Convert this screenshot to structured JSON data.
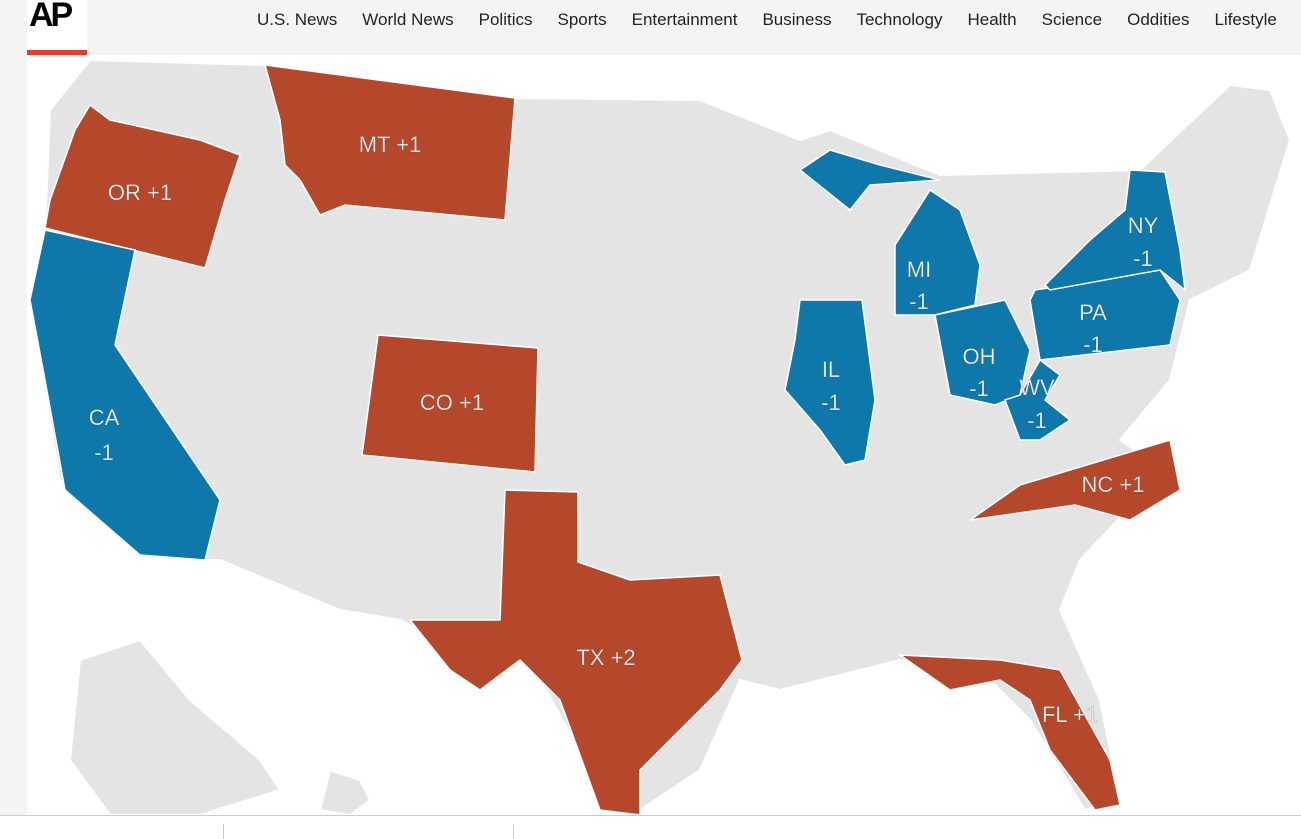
{
  "header": {
    "logo": "AP",
    "nav": [
      "U.S. News",
      "World News",
      "Politics",
      "Sports",
      "Entertainment",
      "Business",
      "Technology",
      "Health",
      "Science",
      "Oddities",
      "Lifestyle"
    ]
  },
  "colors": {
    "gain": "#b5472a",
    "loss": "#0f78ab",
    "neutral": "#e4e4e5"
  },
  "map": {
    "states": [
      {
        "id": "OR",
        "label": "OR +1",
        "change": 1
      },
      {
        "id": "MT",
        "label": "MT +1",
        "change": 1
      },
      {
        "id": "CO",
        "label": "CO +1",
        "change": 1
      },
      {
        "id": "TX",
        "label": "TX +2",
        "change": 2
      },
      {
        "id": "NC",
        "label": "NC +1",
        "change": 1
      },
      {
        "id": "FL",
        "label": "FL +1",
        "change": 1
      },
      {
        "id": "CA",
        "label": "CA",
        "change_label": "-1",
        "change": -1
      },
      {
        "id": "IL",
        "label": "IL",
        "change_label": "-1",
        "change": -1
      },
      {
        "id": "MI",
        "label": "MI",
        "change_label": "-1",
        "change": -1
      },
      {
        "id": "OH",
        "label": "OH",
        "change_label": "-1",
        "change": -1
      },
      {
        "id": "WV",
        "label": "WV",
        "change_label": "-1",
        "change": -1
      },
      {
        "id": "PA",
        "label": "PA",
        "change_label": "-1",
        "change": -1
      },
      {
        "id": "NY",
        "label": "NY",
        "change_label": "-1",
        "change": -1
      }
    ]
  }
}
